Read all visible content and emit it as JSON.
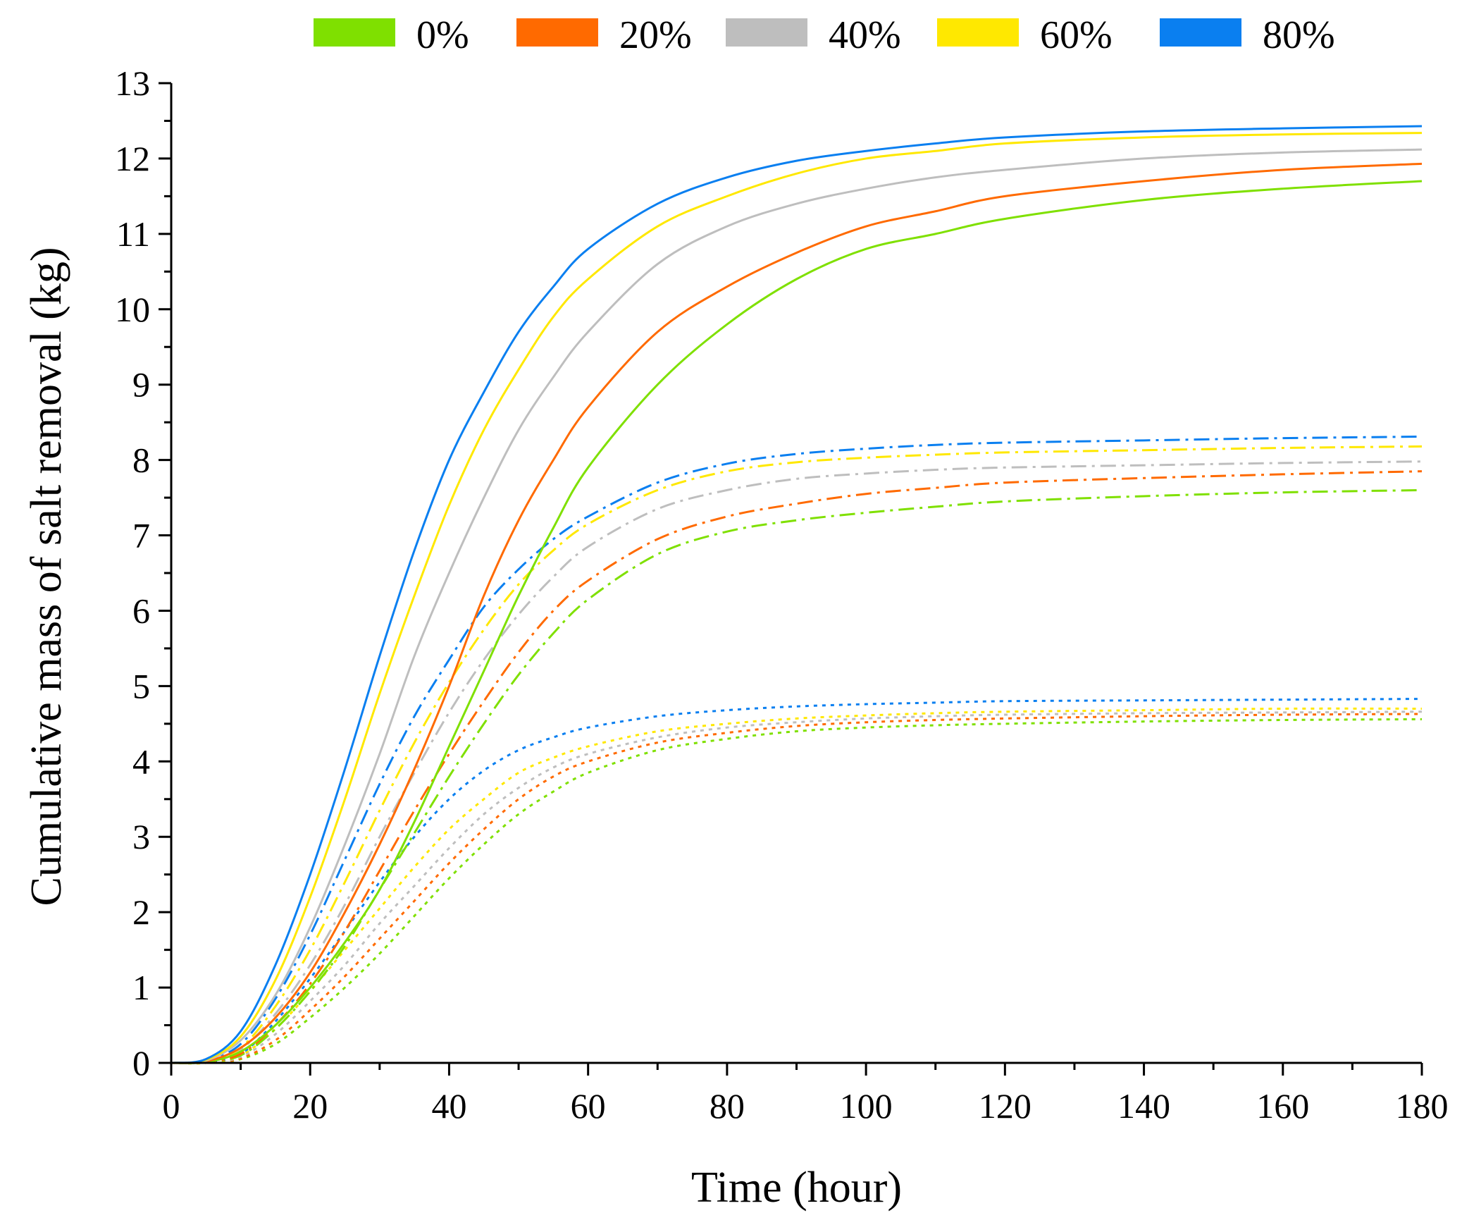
{
  "chart_data": {
    "type": "line",
    "title": "",
    "xlabel": "Time (hour)",
    "ylabel": "Cumulative mass of salt removal (kg)",
    "xlim": [
      0,
      180
    ],
    "ylim": [
      0,
      13
    ],
    "x_ticks": [
      0,
      20,
      40,
      60,
      80,
      100,
      120,
      140,
      160,
      180
    ],
    "y_ticks": [
      0,
      1,
      2,
      3,
      4,
      5,
      6,
      7,
      8,
      9,
      10,
      11,
      12,
      13
    ],
    "x_tick_labels": [
      "0",
      "20",
      "40",
      "60",
      "80",
      "100",
      "120",
      "140",
      "160",
      "180"
    ],
    "y_tick_labels": [
      "0",
      "1",
      "2",
      "3",
      "4",
      "5",
      "6",
      "7",
      "8",
      "9",
      "10",
      "11",
      "12",
      "13"
    ],
    "grid": false,
    "legend_position": "top",
    "legend": [
      {
        "label": "0%",
        "color": "#7FE000"
      },
      {
        "label": "20%",
        "color": "#FF6A00"
      },
      {
        "label": "40%",
        "color": "#BEBEBE"
      },
      {
        "label": "60%",
        "color": "#FFE800"
      },
      {
        "label": "80%",
        "color": "#0A7FF0"
      }
    ],
    "x": [
      0,
      5,
      10,
      15,
      20,
      25,
      30,
      35,
      40,
      45,
      50,
      55,
      60,
      70,
      80,
      90,
      100,
      110,
      120,
      140,
      160,
      180
    ],
    "series": [
      {
        "name": "0% solid",
        "group": "0%",
        "style": "solid",
        "color": "#7FE000",
        "values": [
          0,
          0.01,
          0.15,
          0.5,
          1.0,
          1.6,
          2.3,
          3.2,
          4.2,
          5.2,
          6.2,
          7.1,
          7.9,
          9.0,
          9.8,
          10.4,
          10.8,
          11.0,
          11.2,
          11.45,
          11.6,
          11.7
        ]
      },
      {
        "name": "20% solid",
        "group": "20%",
        "style": "solid",
        "color": "#FF6A00",
        "values": [
          0,
          0.02,
          0.2,
          0.6,
          1.2,
          2.0,
          2.9,
          3.9,
          5.0,
          6.2,
          7.2,
          8.0,
          8.7,
          9.7,
          10.3,
          10.75,
          11.1,
          11.3,
          11.5,
          11.7,
          11.85,
          11.93
        ]
      },
      {
        "name": "40% solid",
        "group": "40%",
        "style": "solid",
        "color": "#BEBEBE",
        "values": [
          0,
          0.03,
          0.3,
          0.9,
          1.8,
          2.9,
          4.1,
          5.4,
          6.5,
          7.5,
          8.4,
          9.1,
          9.7,
          10.6,
          11.1,
          11.4,
          11.6,
          11.75,
          11.85,
          12.0,
          12.08,
          12.12
        ]
      },
      {
        "name": "60% solid",
        "group": "60%",
        "style": "solid",
        "color": "#FFE800",
        "values": [
          0,
          0.04,
          0.35,
          1.1,
          2.2,
          3.5,
          4.9,
          6.2,
          7.4,
          8.4,
          9.2,
          9.9,
          10.4,
          11.1,
          11.5,
          11.8,
          12.0,
          12.1,
          12.2,
          12.28,
          12.32,
          12.34
        ]
      },
      {
        "name": "80% solid",
        "group": "80%",
        "style": "solid",
        "color": "#0A7FF0",
        "values": [
          0,
          0.05,
          0.42,
          1.3,
          2.5,
          3.9,
          5.4,
          6.8,
          8.0,
          8.9,
          9.7,
          10.3,
          10.8,
          11.4,
          11.75,
          11.97,
          12.1,
          12.2,
          12.28,
          12.36,
          12.4,
          12.43
        ]
      },
      {
        "name": "0% dash-dot",
        "group": "0%",
        "style": "dashdot",
        "color": "#7FE000",
        "values": [
          0,
          0.01,
          0.1,
          0.45,
          0.95,
          1.55,
          2.3,
          3.05,
          3.8,
          4.5,
          5.15,
          5.7,
          6.15,
          6.75,
          7.05,
          7.2,
          7.3,
          7.38,
          7.45,
          7.52,
          7.57,
          7.6
        ]
      },
      {
        "name": "20% dash-dot",
        "group": "20%",
        "style": "dashdot",
        "color": "#FF6A00",
        "values": [
          0,
          0.01,
          0.12,
          0.5,
          1.05,
          1.75,
          2.55,
          3.35,
          4.1,
          4.8,
          5.45,
          6.0,
          6.4,
          6.95,
          7.25,
          7.42,
          7.55,
          7.63,
          7.7,
          7.76,
          7.81,
          7.85
        ]
      },
      {
        "name": "40% dash-dot",
        "group": "40%",
        "style": "dashdot",
        "color": "#BEBEBE",
        "values": [
          0,
          0.02,
          0.18,
          0.65,
          1.3,
          2.1,
          3.0,
          3.85,
          4.65,
          5.35,
          5.95,
          6.45,
          6.85,
          7.35,
          7.6,
          7.75,
          7.82,
          7.87,
          7.9,
          7.93,
          7.96,
          7.98
        ]
      },
      {
        "name": "60% dash-dot",
        "group": "60%",
        "style": "dashdot",
        "color": "#FFE800",
        "values": [
          0,
          0.02,
          0.2,
          0.75,
          1.5,
          2.4,
          3.35,
          4.25,
          5.05,
          5.75,
          6.35,
          6.8,
          7.15,
          7.6,
          7.85,
          7.97,
          8.03,
          8.07,
          8.1,
          8.13,
          8.16,
          8.18
        ]
      },
      {
        "name": "80% dash-dot",
        "group": "80%",
        "style": "dashdot",
        "color": "#0A7FF0",
        "values": [
          0,
          0.03,
          0.25,
          0.85,
          1.7,
          2.7,
          3.7,
          4.6,
          5.35,
          6.05,
          6.55,
          6.95,
          7.25,
          7.7,
          7.95,
          8.08,
          8.15,
          8.2,
          8.23,
          8.26,
          8.29,
          8.31
        ]
      },
      {
        "name": "0% dotted",
        "group": "0%",
        "style": "dotted",
        "color": "#7FE000",
        "values": [
          0,
          0.0,
          0.05,
          0.25,
          0.6,
          1.0,
          1.45,
          1.95,
          2.45,
          2.9,
          3.3,
          3.6,
          3.85,
          4.15,
          4.3,
          4.4,
          4.45,
          4.48,
          4.5,
          4.53,
          4.55,
          4.56
        ]
      },
      {
        "name": "20% dotted",
        "group": "20%",
        "style": "dotted",
        "color": "#FF6A00",
        "values": [
          0,
          0.0,
          0.06,
          0.3,
          0.7,
          1.15,
          1.65,
          2.15,
          2.65,
          3.1,
          3.5,
          3.8,
          4.0,
          4.25,
          4.38,
          4.47,
          4.52,
          4.55,
          4.57,
          4.6,
          4.62,
          4.63
        ]
      },
      {
        "name": "40% dotted",
        "group": "40%",
        "style": "dotted",
        "color": "#BEBEBE",
        "values": [
          0,
          0.0,
          0.08,
          0.38,
          0.82,
          1.3,
          1.85,
          2.35,
          2.85,
          3.3,
          3.65,
          3.92,
          4.1,
          4.32,
          4.45,
          4.52,
          4.57,
          4.6,
          4.62,
          4.64,
          4.65,
          4.66
        ]
      },
      {
        "name": "60% dotted",
        "group": "60%",
        "style": "dotted",
        "color": "#FFE800",
        "values": [
          0,
          0.0,
          0.1,
          0.45,
          0.95,
          1.5,
          2.05,
          2.6,
          3.1,
          3.5,
          3.85,
          4.05,
          4.2,
          4.4,
          4.5,
          4.57,
          4.61,
          4.64,
          4.66,
          4.68,
          4.7,
          4.7
        ]
      },
      {
        "name": "80% dotted",
        "group": "80%",
        "style": "dotted",
        "color": "#0A7FF0",
        "values": [
          0,
          0.01,
          0.12,
          0.55,
          1.12,
          1.75,
          2.4,
          3.0,
          3.5,
          3.88,
          4.15,
          4.32,
          4.45,
          4.6,
          4.68,
          4.73,
          4.76,
          4.78,
          4.8,
          4.81,
          4.82,
          4.83
        ]
      }
    ]
  }
}
